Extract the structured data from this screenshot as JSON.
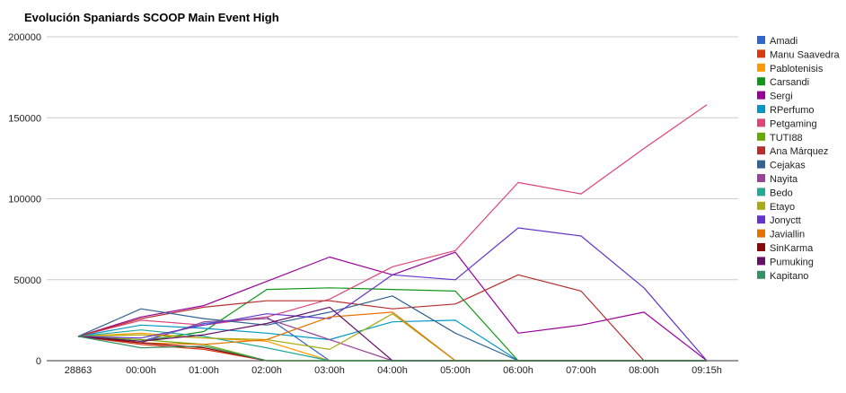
{
  "chart_data": {
    "type": "line",
    "title": "Evolución Spaniards SCOOP Main Event High",
    "xlabel": "",
    "ylabel": "",
    "categories": [
      "28863",
      "00:00h",
      "01:00h",
      "02:00h",
      "03:00h",
      "04:00h",
      "05:00h",
      "06:00h",
      "07:00h",
      "08:00h",
      "09:15h"
    ],
    "ylim": [
      0,
      200000
    ],
    "yticks": [
      0,
      50000,
      100000,
      150000,
      200000
    ],
    "ytick_labels": [
      "0",
      "50000",
      "100000",
      "150000",
      "200000"
    ],
    "grid": true,
    "legend_position": "right",
    "series": [
      {
        "name": "Amadi",
        "color": "#3366cc",
        "values": [
          15000,
          12000,
          23000,
          27000,
          0,
          0,
          0,
          0,
          0,
          0,
          0
        ]
      },
      {
        "name": "Manu Saavedra",
        "color": "#dc3912",
        "values": [
          15000,
          10000,
          7000,
          0,
          0,
          0,
          0,
          0,
          0,
          0,
          0
        ]
      },
      {
        "name": "Pablotenisis",
        "color": "#ff9900",
        "values": [
          15000,
          17000,
          14000,
          12000,
          0,
          0,
          0,
          0,
          0,
          0,
          0
        ]
      },
      {
        "name": "Carsandi",
        "color": "#109618",
        "values": [
          15000,
          12000,
          18000,
          44000,
          45000,
          44000,
          43000,
          0,
          0,
          0,
          0
        ]
      },
      {
        "name": "Sergi",
        "color": "#990099",
        "values": [
          15000,
          27000,
          34000,
          49000,
          64000,
          53000,
          67000,
          17000,
          22000,
          30000,
          0
        ]
      },
      {
        "name": "RPerfumo",
        "color": "#0099c6",
        "values": [
          15000,
          22000,
          20000,
          17000,
          13000,
          24000,
          25000,
          0,
          0,
          0,
          0
        ]
      },
      {
        "name": "Petgaming",
        "color": "#dd4477",
        "values": [
          15000,
          25000,
          22000,
          27000,
          38000,
          58000,
          68000,
          110000,
          103000,
          131000,
          158000
        ]
      },
      {
        "name": "TUTI88",
        "color": "#66aa00",
        "values": [
          15000,
          13000,
          10000,
          0,
          0,
          0,
          0,
          0,
          0,
          0,
          0
        ]
      },
      {
        "name": "Ana Márquez",
        "color": "#b82e2e",
        "values": [
          15000,
          26000,
          33000,
          37000,
          37000,
          32000,
          35000,
          53000,
          43000,
          0,
          0
        ]
      },
      {
        "name": "Cejakas",
        "color": "#316395",
        "values": [
          15000,
          32000,
          26000,
          22000,
          30000,
          40000,
          17000,
          0,
          0,
          0,
          0
        ]
      },
      {
        "name": "Nayita",
        "color": "#994499",
        "values": [
          15000,
          11000,
          24000,
          26000,
          13000,
          0,
          0,
          0,
          0,
          0,
          0
        ]
      },
      {
        "name": "Bedo",
        "color": "#22aa99",
        "values": [
          15000,
          19000,
          15000,
          8000,
          0,
          0,
          0,
          0,
          0,
          0,
          0
        ]
      },
      {
        "name": "Etayo",
        "color": "#aaaa11",
        "values": [
          15000,
          16000,
          14000,
          13000,
          7000,
          29000,
          0,
          0,
          0,
          0,
          0
        ]
      },
      {
        "name": "Jonyctt",
        "color": "#6633cc",
        "values": [
          15000,
          14000,
          22000,
          29000,
          26000,
          53000,
          50000,
          82000,
          77000,
          45000,
          0
        ]
      },
      {
        "name": "Javiallin",
        "color": "#e67300",
        "values": [
          15000,
          11000,
          10000,
          13000,
          27000,
          30000,
          0,
          0,
          0,
          0,
          0
        ]
      },
      {
        "name": "SinKarma",
        "color": "#8b0707",
        "values": [
          15000,
          11000,
          8000,
          0,
          0,
          0,
          0,
          0,
          0,
          0,
          0
        ]
      },
      {
        "name": "Pumuking",
        "color": "#651067",
        "values": [
          15000,
          12000,
          16000,
          23000,
          33000,
          0,
          0,
          0,
          0,
          0,
          0
        ]
      },
      {
        "name": "Kapitano",
        "color": "#329262",
        "values": [
          15000,
          8000,
          9000,
          0,
          0,
          0,
          0,
          0,
          0,
          0,
          0
        ]
      }
    ]
  }
}
